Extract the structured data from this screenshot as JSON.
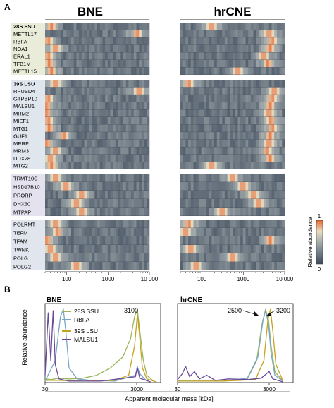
{
  "figure": {
    "panel_a_label": "A",
    "panel_b_label": "B",
    "heat_title_left": "BNE",
    "heat_title_right": "hrCNE",
    "colorbar": {
      "label": "Relative abundance",
      "max_label": "1",
      "min_label": "0",
      "colors": [
        "#3d4a5c",
        "#9aa3a6",
        "#e8dcc0",
        "#e8622a"
      ]
    },
    "heat_xticks": [
      "100",
      "1000",
      "10 000"
    ],
    "line_title_left": "BNE",
    "line_title_right": "hrCNE",
    "line_ylabel": "Relative abundance",
    "line_xlabel": "Apparent molecular mass [kDa]",
    "line_xticks_left": [
      "30",
      "3000"
    ],
    "line_xticks_right": [
      "30",
      "3000"
    ],
    "annotations": {
      "left_peak": "3100",
      "right_peak_a": "2500",
      "right_peak_b": "3200"
    },
    "legend": [
      "28S SSU",
      "RBFA",
      "39S LSU",
      "MALSU1"
    ]
  },
  "chart_data": [
    {
      "type": "heatmap",
      "title": "BNE",
      "x_scale": "log",
      "xlim": [
        30,
        10000
      ],
      "xticks": [
        100,
        1000,
        10000
      ],
      "groups": [
        {
          "name": "28S SSU",
          "rows": [
            "METTL17",
            "RBFA",
            "NOA1",
            "ERAL1",
            "TFB1M",
            "METTL15"
          ]
        },
        {
          "name": "39S LSU",
          "rows": [
            "RPUSD4",
            "GTPBP10",
            "MALSU1",
            "MRM2",
            "MIEF1",
            "MTG1",
            "GUF1",
            "MRRF",
            "MRM3",
            "DDX28",
            "MTG2"
          ]
        },
        {
          "name": "",
          "rows": [
            "TRMT10C",
            "HSD17B10",
            "PRORP",
            "DHX30",
            "MTPAP"
          ]
        },
        {
          "name": "",
          "rows": [
            "POLRMT",
            "TEFM",
            "TFAM",
            "TWNK",
            "POLG",
            "POLG2"
          ]
        }
      ]
    },
    {
      "type": "heatmap",
      "title": "hrCNE",
      "x_scale": "log",
      "xlim": [
        30,
        10000
      ],
      "xticks": [
        100,
        1000,
        10000
      ],
      "groups": [
        {
          "name": "28S SSU",
          "rows": [
            "METTL17",
            "RBFA",
            "NOA1",
            "ERAL1",
            "TFB1M",
            "METTL15"
          ]
        },
        {
          "name": "39S LSU",
          "rows": [
            "RPUSD4",
            "GTPBP10",
            "MALSU1",
            "MRM2",
            "MIEF1",
            "MTG1",
            "GUF1",
            "MRRF",
            "MRM3",
            "DDX28",
            "MTG2"
          ]
        },
        {
          "name": "",
          "rows": [
            "TRMT10C",
            "HSD17B10",
            "PRORP",
            "DHX30",
            "MTPAP"
          ]
        },
        {
          "name": "",
          "rows": [
            "POLRMT",
            "TEFM",
            "TFAM",
            "TWNK",
            "POLG",
            "POLG2"
          ]
        }
      ]
    },
    {
      "type": "line",
      "title": "BNE",
      "xlabel": "Apparent molecular mass [kDa]",
      "ylabel": "Relative abundance",
      "x_scale": "log",
      "xlim": [
        30,
        10000
      ],
      "ylim": [
        0,
        1
      ],
      "series": [
        {
          "name": "28S SSU",
          "color": "#9ab55a",
          "points": [
            [
              30,
              0.05
            ],
            [
              40,
              0.04
            ],
            [
              60,
              0.06
            ],
            [
              100,
              0.05
            ],
            [
              200,
              0.06
            ],
            [
              400,
              0.1
            ],
            [
              800,
              0.2
            ],
            [
              1500,
              0.35
            ],
            [
              2200,
              0.6
            ],
            [
              2700,
              0.9
            ],
            [
              3100,
              1.0
            ],
            [
              3500,
              0.7
            ],
            [
              4200,
              0.3
            ],
            [
              5000,
              0.1
            ],
            [
              7000,
              0.02
            ]
          ]
        },
        {
          "name": "RBFA",
          "color": "#7aa7c9",
          "points": [
            [
              30,
              0.02
            ],
            [
              50,
              0.3
            ],
            [
              65,
              0.9
            ],
            [
              75,
              1.0
            ],
            [
              85,
              0.7
            ],
            [
              100,
              0.2
            ],
            [
              150,
              0.05
            ],
            [
              300,
              0.03
            ],
            [
              1000,
              0.02
            ],
            [
              2800,
              0.1
            ],
            [
              3100,
              0.22
            ],
            [
              3500,
              0.12
            ],
            [
              5000,
              0.02
            ]
          ]
        },
        {
          "name": "39S LSU",
          "color": "#c6a21f",
          "points": [
            [
              30,
              0.03
            ],
            [
              60,
              0.03
            ],
            [
              200,
              0.02
            ],
            [
              1000,
              0.03
            ],
            [
              2000,
              0.1
            ],
            [
              2700,
              0.5
            ],
            [
              3100,
              0.92
            ],
            [
              3400,
              0.7
            ],
            [
              4000,
              0.2
            ],
            [
              5000,
              0.05
            ],
            [
              8000,
              0.01
            ]
          ]
        },
        {
          "name": "MALSU1",
          "color": "#6a4a9a",
          "points": [
            [
              30,
              0.1
            ],
            [
              35,
              0.95
            ],
            [
              40,
              0.3
            ],
            [
              45,
              0.98
            ],
            [
              50,
              0.25
            ],
            [
              60,
              0.05
            ],
            [
              100,
              0.02
            ],
            [
              500,
              0.02
            ],
            [
              2800,
              0.08
            ],
            [
              3100,
              0.2
            ],
            [
              3500,
              0.06
            ],
            [
              6000,
              0.01
            ]
          ]
        }
      ]
    },
    {
      "type": "line",
      "title": "hrCNE",
      "xlabel": "Apparent molecular mass [kDa]",
      "ylabel": "Relative abundance",
      "x_scale": "log",
      "xlim": [
        30,
        10000
      ],
      "ylim": [
        0,
        1
      ],
      "series": [
        {
          "name": "28S SSU",
          "color": "#9ab55a",
          "points": [
            [
              30,
              0.02
            ],
            [
              300,
              0.02
            ],
            [
              1000,
              0.05
            ],
            [
              1600,
              0.3
            ],
            [
              2100,
              0.8
            ],
            [
              2500,
              1.0
            ],
            [
              2900,
              0.85
            ],
            [
              3300,
              0.5
            ],
            [
              4000,
              0.15
            ],
            [
              6000,
              0.02
            ]
          ]
        },
        {
          "name": "RBFA",
          "color": "#7aa7c9",
          "points": [
            [
              30,
              0.02
            ],
            [
              300,
              0.02
            ],
            [
              1000,
              0.06
            ],
            [
              1700,
              0.35
            ],
            [
              2200,
              0.85
            ],
            [
              2500,
              0.98
            ],
            [
              2900,
              0.8
            ],
            [
              3300,
              0.4
            ],
            [
              4000,
              0.1
            ],
            [
              6000,
              0.02
            ]
          ]
        },
        {
          "name": "39S LSU",
          "color": "#c6a21f",
          "points": [
            [
              30,
              0.02
            ],
            [
              300,
              0.02
            ],
            [
              1500,
              0.04
            ],
            [
              2300,
              0.3
            ],
            [
              2800,
              0.85
            ],
            [
              3200,
              1.0
            ],
            [
              3600,
              0.7
            ],
            [
              4200,
              0.25
            ],
            [
              6000,
              0.02
            ]
          ]
        },
        {
          "name": "MALSU1",
          "color": "#6a4a9a",
          "points": [
            [
              30,
              0.04
            ],
            [
              38,
              0.12
            ],
            [
              45,
              0.22
            ],
            [
              55,
              0.08
            ],
            [
              70,
              0.15
            ],
            [
              90,
              0.05
            ],
            [
              130,
              0.1
            ],
            [
              200,
              0.03
            ],
            [
              400,
              0.05
            ],
            [
              1000,
              0.04
            ],
            [
              2000,
              0.06
            ],
            [
              3000,
              0.15
            ],
            [
              3600,
              0.05
            ],
            [
              6000,
              0.01
            ]
          ]
        }
      ]
    }
  ]
}
